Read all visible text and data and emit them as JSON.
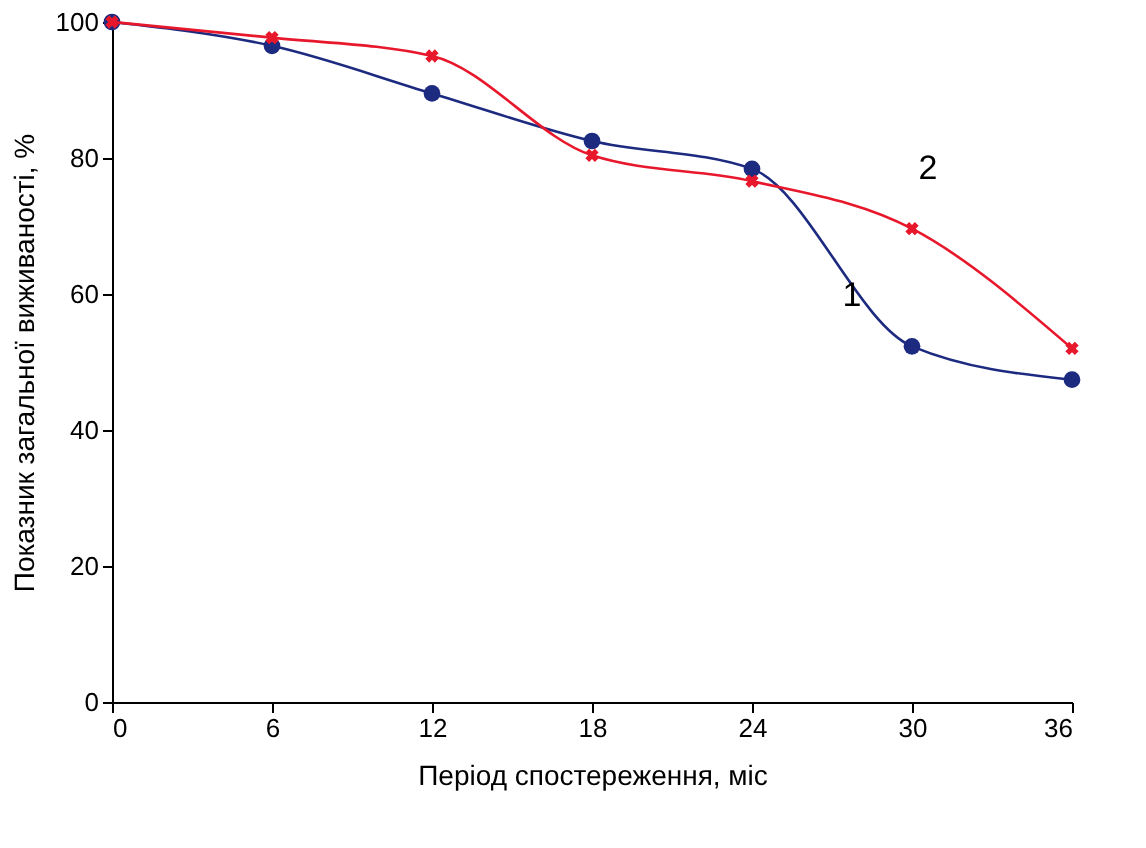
{
  "chart_data": {
    "type": "line",
    "xlabel": "Період спостереження, міс",
    "ylabel": "Показник загальної виживаності, %",
    "x": [
      0,
      6,
      12,
      18,
      24,
      30,
      36
    ],
    "series": [
      {
        "name": "1",
        "color": "#1c2a80",
        "marker": "circle",
        "values": [
          100,
          96.5,
          89.5,
          82.5,
          78.4,
          52.3,
          47.4
        ]
      },
      {
        "name": "2",
        "color": "#e8182c",
        "marker": "cross",
        "values": [
          100,
          97.7,
          95,
          80.4,
          76.6,
          69.6,
          52
        ]
      }
    ],
    "xlim": [
      0,
      36
    ],
    "xticks": [
      0,
      6,
      12,
      18,
      24,
      30,
      36
    ],
    "ylim": [
      0,
      100
    ],
    "yticks": [
      0,
      20,
      40,
      60,
      80,
      100
    ],
    "grid": false,
    "legend": false,
    "line_style": "solid"
  }
}
